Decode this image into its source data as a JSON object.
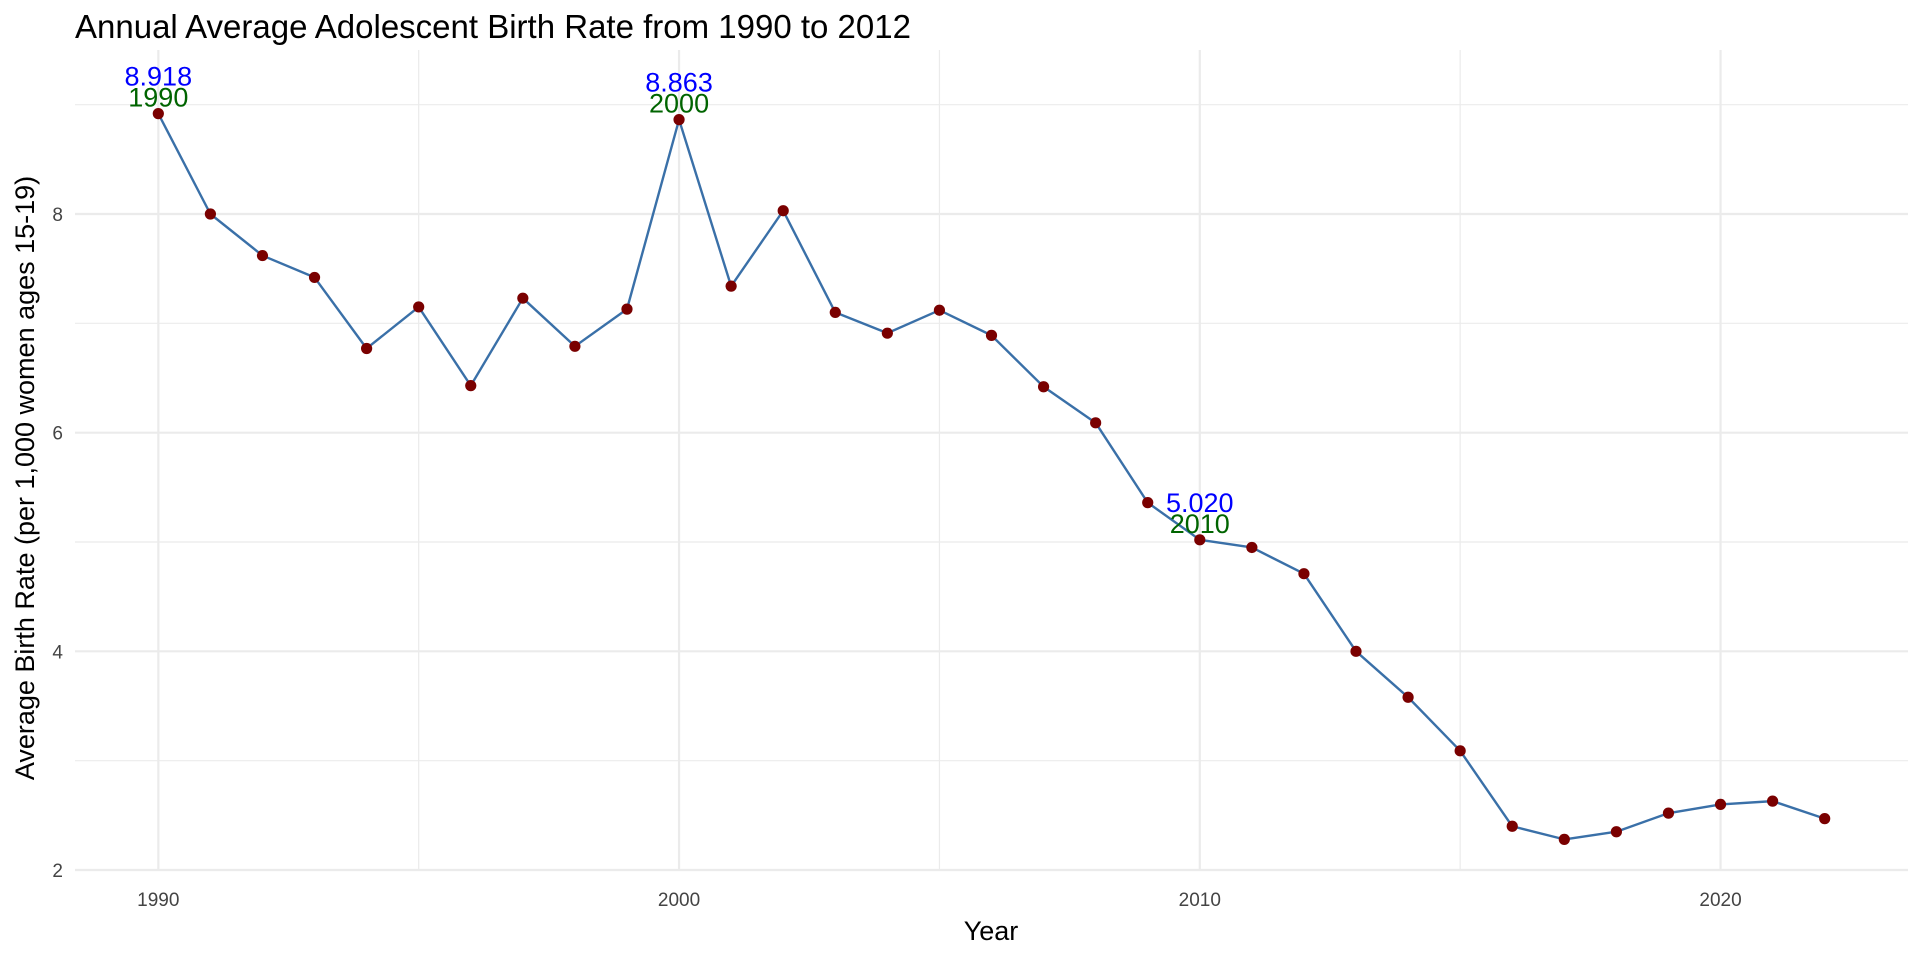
{
  "chart_data": {
    "type": "line",
    "title": "Annual Average Adolescent Birth Rate from 1990 to 2012",
    "xlabel": "Year",
    "ylabel": "Average Birth Rate (per 1,000 women ages 15-19)",
    "xlim": [
      1988.4,
      2023.6
    ],
    "ylim": [
      2.0,
      9.5
    ],
    "x_ticks": [
      1990,
      2000,
      2010,
      2020
    ],
    "y_ticks": [
      2,
      4,
      6,
      8
    ],
    "grid": true,
    "legend": "none",
    "colors": {
      "line": "#3a70a8",
      "point": "#7a0000",
      "value_label": "#0000ff",
      "year_label": "#006400",
      "grid": "#ebebeb"
    },
    "series": [
      {
        "x": [
          1990,
          1991,
          1992,
          1993,
          1994,
          1995,
          1996,
          1997,
          1998,
          1999,
          2000,
          2001,
          2002,
          2003,
          2004,
          2005,
          2006,
          2007,
          2008,
          2009,
          2010,
          2011,
          2012,
          2013,
          2014,
          2015,
          2016,
          2017,
          2018,
          2019,
          2020,
          2021,
          2022
        ],
        "values": [
          8.918,
          8.0,
          7.62,
          7.42,
          6.77,
          7.15,
          6.43,
          7.23,
          6.79,
          7.13,
          8.863,
          7.34,
          8.03,
          7.1,
          6.91,
          7.12,
          6.89,
          6.42,
          6.09,
          5.36,
          5.02,
          4.95,
          4.71,
          4.0,
          3.58,
          3.09,
          2.4,
          2.28,
          2.35,
          2.52,
          2.6,
          2.63,
          2.47
        ]
      }
    ],
    "annotations": [
      {
        "x": 1990,
        "y": 8.918,
        "value_text": "8.918",
        "year_text": "1990"
      },
      {
        "x": 2000,
        "y": 8.863,
        "value_text": "8.863",
        "year_text": "2000"
      },
      {
        "x": 2010,
        "y": 5.02,
        "value_text": "5.020",
        "year_text": "2010"
      }
    ]
  }
}
